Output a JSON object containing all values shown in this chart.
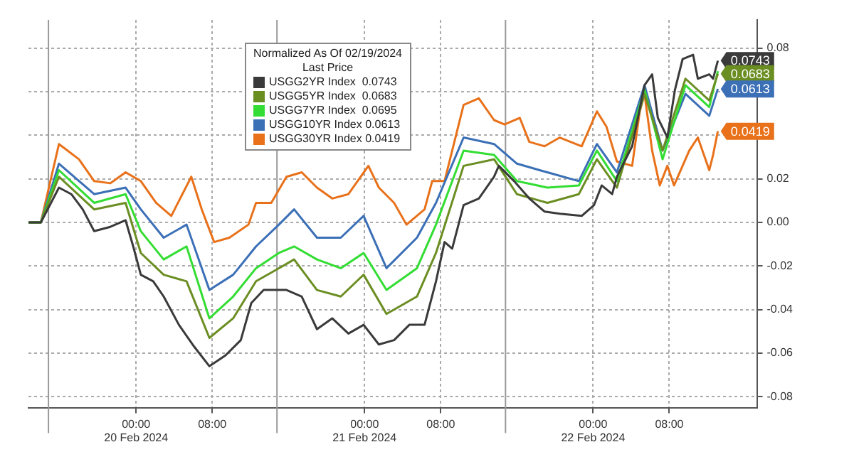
{
  "chart_data": {
    "type": "line",
    "legend_title": "Normalized As Of 02/19/2024\nLast Price",
    "legend": "top",
    "grid": "xy",
    "marker": "none",
    "line_style": "solid",
    "xlim": [
      "2024-02-19T12:42",
      "2024-02-22T17:12"
    ],
    "xticks": [
      {
        "value": "2024-02-20T00:00",
        "label": "00:00\n20 Feb 2024"
      },
      {
        "value": "2024-02-20T08:00",
        "label": "08:00"
      },
      {
        "value": "2024-02-21T00:00",
        "label": "00:00\n21 Feb 2024"
      },
      {
        "value": "2024-02-21T08:00",
        "label": "08:00"
      },
      {
        "value": "2024-02-22T00:00",
        "label": "00:00\n22 Feb 2024"
      },
      {
        "value": "2024-02-22T08:00",
        "label": "08:00"
      }
    ],
    "ylim": [
      -0.085,
      0.093
    ],
    "yticks": [
      {
        "value": -0.08,
        "label": "-0.08"
      },
      {
        "value": -0.06,
        "label": "-0.06"
      },
      {
        "value": -0.04,
        "label": "-0.04"
      },
      {
        "value": -0.02,
        "label": "-0.02"
      },
      {
        "value": 0,
        "label": "0.00"
      },
      {
        "value": 0.02,
        "label": "0.02"
      },
      {
        "value": 0.04,
        "label": null
      },
      {
        "value": 0.06,
        "label": null
      },
      {
        "value": 0.08,
        "label": "0.08"
      }
    ],
    "ref_lines": [
      {
        "axis": "x",
        "value": "2024-02-19T14:48",
        "color": "#999999"
      },
      {
        "axis": "x",
        "value": "2024-02-20T14:48",
        "color": "#999999"
      },
      {
        "axis": "x",
        "value": "2024-02-21T14:48",
        "color": "#999999"
      }
    ],
    "series": [
      {
        "name": "USGG2YR Index  0.0743",
        "color": "#3a3a3a",
        "x": [
          "2024-02-19T12:42",
          "2024-02-19T14:00",
          "2024-02-19T15:54",
          "2024-02-19T17:12",
          "2024-02-19T18:24",
          "2024-02-19T19:36",
          "2024-02-19T21:18",
          "2024-02-19T22:54",
          "2024-02-19T23:42",
          "2024-02-20T00:30",
          "2024-02-20T01:48",
          "2024-02-20T02:54",
          "2024-02-20T04:30",
          "2024-02-20T06:06",
          "2024-02-20T07:42",
          "2024-02-20T09:24",
          "2024-02-20T11:00",
          "2024-02-20T12:06",
          "2024-02-20T13:24",
          "2024-02-20T15:48",
          "2024-02-20T17:24",
          "2024-02-20T19:00",
          "2024-02-20T20:36",
          "2024-02-20T22:18",
          "2024-02-20T23:54",
          "2024-02-21T01:30",
          "2024-02-21T03:06",
          "2024-02-21T04:42",
          "2024-02-21T06:18",
          "2024-02-21T07:30",
          "2024-02-21T08:24",
          "2024-02-21T09:12",
          "2024-02-21T10:24",
          "2024-02-21T12:00",
          "2024-02-21T13:36",
          "2024-02-21T14:06",
          "2024-02-21T15:42",
          "2024-02-21T17:18",
          "2024-02-21T18:54",
          "2024-02-21T20:30",
          "2024-02-21T22:48",
          "2024-02-22T00:06",
          "2024-02-22T00:54",
          "2024-02-22T02:00",
          "2024-02-22T02:30",
          "2024-02-22T04:06",
          "2024-02-22T05:24",
          "2024-02-22T06:12",
          "2024-02-22T06:48",
          "2024-02-22T07:48",
          "2024-02-22T08:36",
          "2024-02-22T09:24",
          "2024-02-22T10:30",
          "2024-02-22T11:00",
          "2024-02-22T12:12",
          "2024-02-22T12:36",
          "2024-02-22T13:06"
        ],
        "values": [
          0,
          0,
          0.016,
          0.013,
          0.006,
          -0.004,
          -0.002,
          0.001,
          -0.011,
          -0.024,
          -0.027,
          -0.034,
          -0.047,
          -0.057,
          -0.066,
          -0.061,
          -0.054,
          -0.037,
          -0.031,
          -0.031,
          -0.034,
          -0.049,
          -0.044,
          -0.051,
          -0.047,
          -0.056,
          -0.054,
          -0.047,
          -0.047,
          -0.027,
          -0.009,
          -0.012,
          0.008,
          0.011,
          0.021,
          0.026,
          0.019,
          0.011,
          0.005,
          0.004,
          0.003,
          0.008,
          0.017,
          0.013,
          0.021,
          0.035,
          0.063,
          0.068,
          0.048,
          0.039,
          0.061,
          0.075,
          0.077,
          0.066,
          0.068,
          0.066,
          0.0743
        ],
        "value_labels": [
          null,
          null,
          null,
          null,
          null,
          null,
          null,
          null,
          null,
          null,
          null,
          null,
          null,
          null,
          null,
          null,
          null,
          null,
          null,
          null,
          null,
          null,
          null,
          null,
          null,
          null,
          null,
          null,
          null,
          null,
          null,
          null,
          null,
          null,
          null,
          null,
          null,
          null,
          null,
          null,
          null,
          null,
          null,
          null,
          null,
          null,
          null,
          null,
          null,
          null,
          null,
          null,
          null,
          null,
          null,
          null,
          "0.0743"
        ]
      },
      {
        "name": "USGG5YR Index  0.0683",
        "color": "#6b8e23",
        "x": [
          "2024-02-19T12:42",
          "2024-02-19T14:00",
          "2024-02-19T15:54",
          "2024-02-19T19:36",
          "2024-02-19T22:54",
          "2024-02-20T00:30",
          "2024-02-20T02:54",
          "2024-02-20T05:18",
          "2024-02-20T07:42",
          "2024-02-20T10:12",
          "2024-02-20T12:36",
          "2024-02-20T15:00",
          "2024-02-20T16:36",
          "2024-02-20T19:00",
          "2024-02-20T21:30",
          "2024-02-20T23:54",
          "2024-02-21T02:18",
          "2024-02-21T05:30",
          "2024-02-21T07:30",
          "2024-02-21T10:24",
          "2024-02-21T13:36",
          "2024-02-21T16:00",
          "2024-02-21T19:12",
          "2024-02-21T22:30",
          "2024-02-22T00:24",
          "2024-02-22T02:30",
          "2024-02-22T05:24",
          "2024-02-22T07:18",
          "2024-02-22T09:42",
          "2024-02-22T12:12",
          "2024-02-22T13:06"
        ],
        "values": [
          0,
          0,
          0.021,
          0.006,
          0.009,
          -0.014,
          -0.024,
          -0.027,
          -0.053,
          -0.044,
          -0.027,
          -0.021,
          -0.017,
          -0.031,
          -0.034,
          -0.024,
          -0.042,
          -0.034,
          -0.014,
          0.026,
          0.029,
          0.013,
          0.009,
          0.013,
          0.029,
          0.016,
          0.059,
          0.033,
          0.066,
          0.056,
          0.0683
        ],
        "value_labels": [
          null,
          null,
          null,
          null,
          null,
          null,
          null,
          null,
          null,
          null,
          null,
          null,
          null,
          null,
          null,
          null,
          null,
          null,
          null,
          null,
          null,
          null,
          null,
          null,
          null,
          null,
          null,
          null,
          null,
          null,
          "0.0683"
        ]
      },
      {
        "name": "USGG7YR Index  0.0695",
        "color": "#33dd33",
        "x": [
          "2024-02-19T12:42",
          "2024-02-19T14:00",
          "2024-02-19T15:54",
          "2024-02-19T19:36",
          "2024-02-19T22:54",
          "2024-02-20T00:30",
          "2024-02-20T02:54",
          "2024-02-20T05:18",
          "2024-02-20T07:42",
          "2024-02-20T10:12",
          "2024-02-20T12:36",
          "2024-02-20T15:00",
          "2024-02-20T16:36",
          "2024-02-20T19:00",
          "2024-02-20T21:30",
          "2024-02-20T23:54",
          "2024-02-21T02:18",
          "2024-02-21T05:30",
          "2024-02-21T07:30",
          "2024-02-21T10:24",
          "2024-02-21T13:36",
          "2024-02-21T16:00",
          "2024-02-21T19:12",
          "2024-02-21T22:30",
          "2024-02-22T00:24",
          "2024-02-22T02:30",
          "2024-02-22T05:24",
          "2024-02-22T07:18",
          "2024-02-22T09:42",
          "2024-02-22T12:12",
          "2024-02-22T13:06"
        ],
        "values": [
          0,
          0,
          0.024,
          0.009,
          0.013,
          -0.004,
          -0.017,
          -0.011,
          -0.044,
          -0.034,
          -0.021,
          -0.014,
          -0.011,
          -0.017,
          -0.021,
          -0.014,
          -0.031,
          -0.021,
          -0.001,
          0.033,
          0.031,
          0.019,
          0.016,
          0.017,
          0.033,
          0.019,
          0.061,
          0.029,
          0.063,
          0.053,
          0.0695
        ]
      },
      {
        "name": "USGG10YR Index 0.0613",
        "color": "#3b6fb6",
        "x": [
          "2024-02-19T12:42",
          "2024-02-19T14:00",
          "2024-02-19T15:54",
          "2024-02-19T19:36",
          "2024-02-19T22:54",
          "2024-02-20T00:30",
          "2024-02-20T02:54",
          "2024-02-20T05:18",
          "2024-02-20T07:42",
          "2024-02-20T10:12",
          "2024-02-20T12:36",
          "2024-02-20T15:00",
          "2024-02-20T16:36",
          "2024-02-20T19:00",
          "2024-02-20T21:30",
          "2024-02-20T23:54",
          "2024-02-21T02:18",
          "2024-02-21T05:30",
          "2024-02-21T07:30",
          "2024-02-21T10:24",
          "2024-02-21T13:36",
          "2024-02-21T16:00",
          "2024-02-21T19:12",
          "2024-02-21T22:30",
          "2024-02-22T00:24",
          "2024-02-22T02:30",
          "2024-02-22T05:24",
          "2024-02-22T07:18",
          "2024-02-22T09:42",
          "2024-02-22T12:12",
          "2024-02-22T13:06"
        ],
        "values": [
          0,
          0,
          0.027,
          0.013,
          0.016,
          0.006,
          -0.007,
          -0.001,
          -0.031,
          -0.024,
          -0.011,
          -0.001,
          0.006,
          -0.007,
          -0.007,
          0.003,
          -0.021,
          -0.007,
          0.009,
          0.039,
          0.036,
          0.027,
          0.023,
          0.019,
          0.036,
          0.023,
          0.063,
          0.033,
          0.059,
          0.049,
          0.0613
        ],
        "value_labels": [
          null,
          null,
          null,
          null,
          null,
          null,
          null,
          null,
          null,
          null,
          null,
          null,
          null,
          null,
          null,
          null,
          null,
          null,
          null,
          null,
          null,
          null,
          null,
          null,
          null,
          null,
          null,
          null,
          null,
          null,
          "0.0613"
        ]
      },
      {
        "name": "USGG30YR Index 0.0419",
        "color": "#e8711a",
        "x": [
          "2024-02-19T12:42",
          "2024-02-19T14:00",
          "2024-02-19T15:54",
          "2024-02-19T18:00",
          "2024-02-19T19:36",
          "2024-02-19T21:18",
          "2024-02-19T22:54",
          "2024-02-20T00:30",
          "2024-02-20T02:06",
          "2024-02-20T03:42",
          "2024-02-20T05:48",
          "2024-02-20T06:54",
          "2024-02-20T08:12",
          "2024-02-20T09:48",
          "2024-02-20T11:48",
          "2024-02-20T12:36",
          "2024-02-20T14:12",
          "2024-02-20T15:48",
          "2024-02-20T17:24",
          "2024-02-20T19:00",
          "2024-02-20T20:36",
          "2024-02-20T22:18",
          "2024-02-21T00:24",
          "2024-02-21T01:30",
          "2024-02-21T03:06",
          "2024-02-21T04:24",
          "2024-02-21T06:18",
          "2024-02-21T07:06",
          "2024-02-21T08:24",
          "2024-02-21T10:24",
          "2024-02-21T12:00",
          "2024-02-21T13:36",
          "2024-02-21T14:42",
          "2024-02-21T16:18",
          "2024-02-21T17:18",
          "2024-02-21T18:54",
          "2024-02-21T20:30",
          "2024-02-21T22:48",
          "2024-02-22T00:24",
          "2024-02-22T01:24",
          "2024-02-22T02:30",
          "2024-02-22T04:06",
          "2024-02-22T04:54",
          "2024-02-22T05:24",
          "2024-02-22T06:12",
          "2024-02-22T07:00",
          "2024-02-22T07:48",
          "2024-02-22T08:30",
          "2024-02-22T10:06",
          "2024-02-22T11:00",
          "2024-02-22T12:12",
          "2024-02-22T12:36",
          "2024-02-22T13:06"
        ],
        "values": [
          0,
          0,
          0.036,
          0.029,
          0.019,
          0.018,
          0.023,
          0.019,
          0.009,
          0.003,
          0.021,
          0.006,
          -0.009,
          -0.007,
          -0.001,
          0.009,
          0.009,
          0.021,
          0.023,
          0.016,
          0.011,
          0.013,
          0.026,
          0.016,
          0.009,
          -0.001,
          0.006,
          0.019,
          0.019,
          0.054,
          0.057,
          0.047,
          0.045,
          0.048,
          0.037,
          0.035,
          0.039,
          0.035,
          0.051,
          0.044,
          0.028,
          0.026,
          0.051,
          0.059,
          0.033,
          0.017,
          0.026,
          0.017,
          0.033,
          0.039,
          0.024,
          0.031,
          0.0419
        ],
        "value_labels": [
          null,
          null,
          null,
          null,
          null,
          null,
          null,
          null,
          null,
          null,
          null,
          null,
          null,
          null,
          null,
          null,
          null,
          null,
          null,
          null,
          null,
          null,
          null,
          null,
          null,
          null,
          null,
          null,
          null,
          null,
          null,
          null,
          null,
          null,
          null,
          null,
          null,
          null,
          null,
          null,
          null,
          null,
          null,
          null,
          null,
          null,
          null,
          null,
          null,
          null,
          null,
          null,
          "0.0419"
        ]
      }
    ]
  }
}
